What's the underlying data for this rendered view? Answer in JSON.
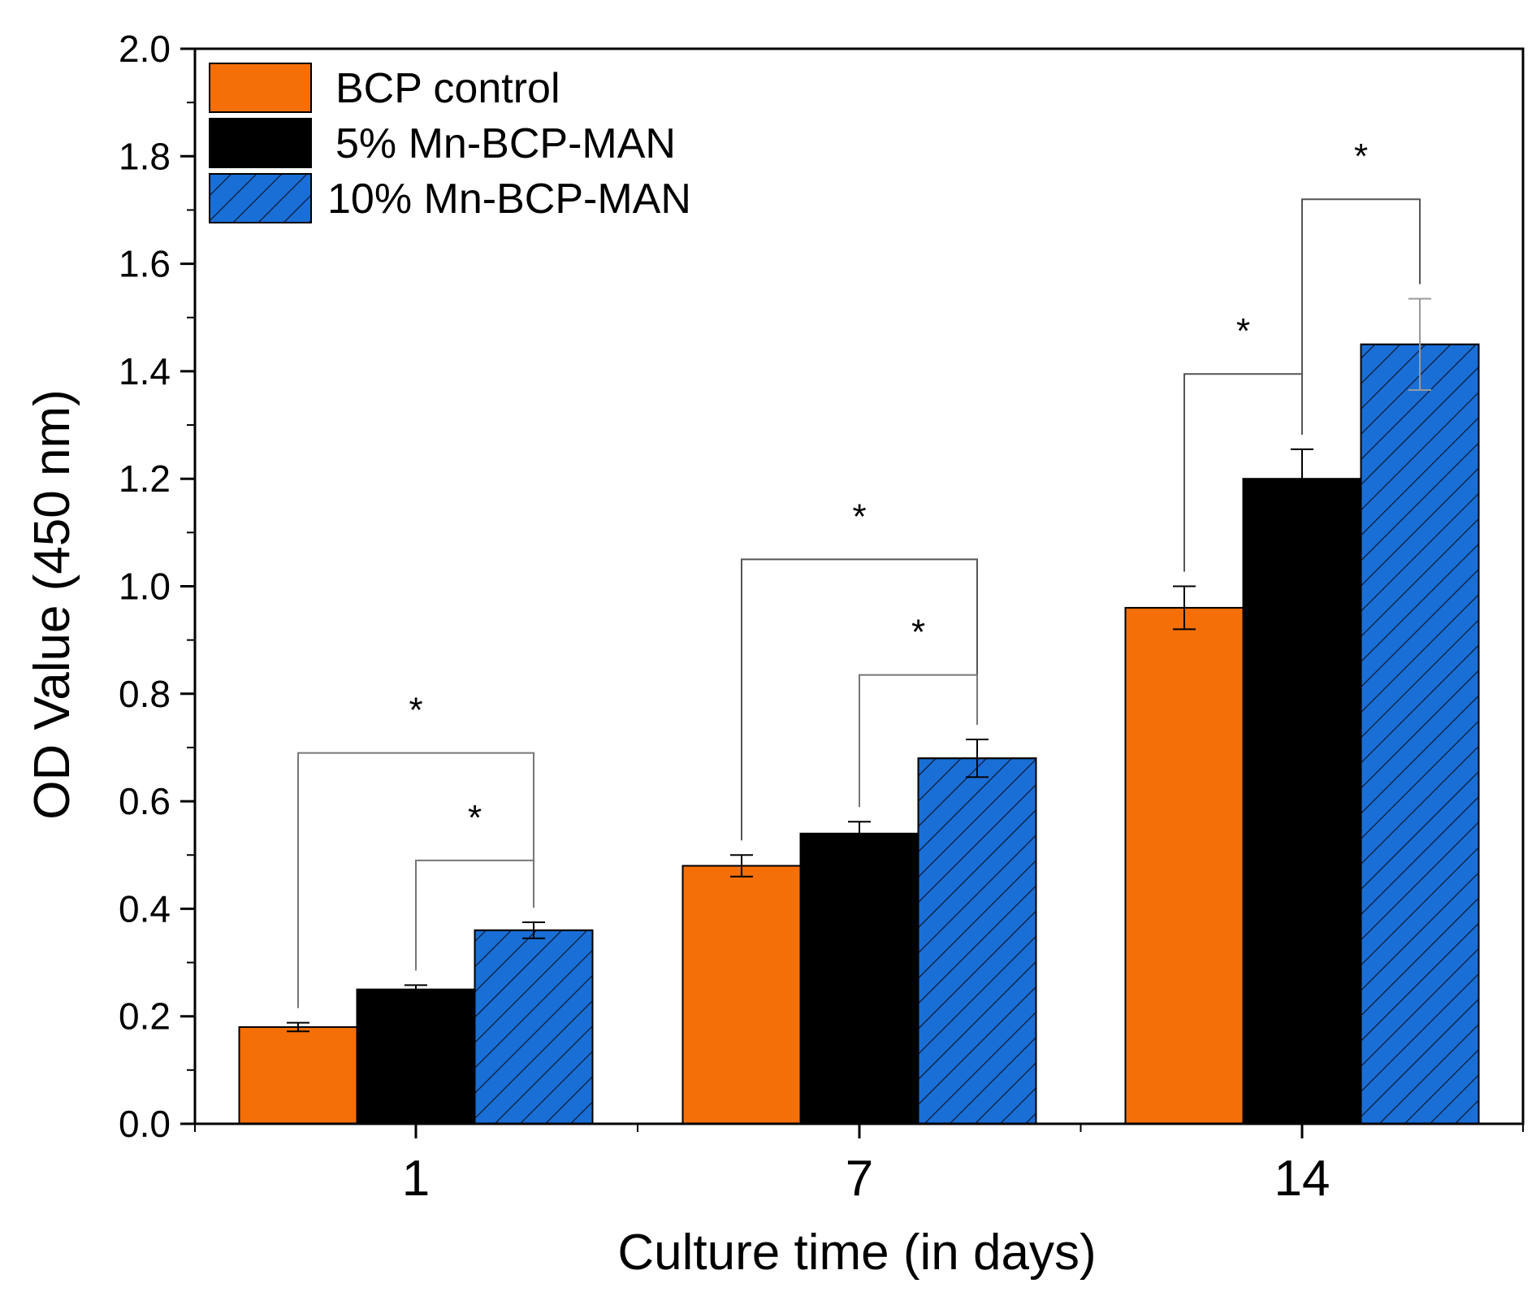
{
  "chart_data": {
    "type": "bar",
    "title": "",
    "xlabel": "Culture time (in days)",
    "ylabel": "OD Value (450 nm)",
    "ylim": [
      0,
      2.0
    ],
    "yticks": [
      "0.0",
      "0.2",
      "0.4",
      "0.6",
      "0.8",
      "1.0",
      "1.2",
      "1.4",
      "1.6",
      "1.8",
      "2.0"
    ],
    "categories": [
      "1",
      "7",
      "14"
    ],
    "legend_position": "top-left",
    "series": [
      {
        "name": "BCP control",
        "color": "#f46f08",
        "pattern": "solid",
        "values": [
          0.18,
          0.48,
          0.96
        ],
        "errors": [
          0.008,
          0.02,
          0.04
        ]
      },
      {
        "name": "5% Mn-BCP-MAN",
        "color": "#000000",
        "pattern": "solid",
        "values": [
          0.25,
          0.54,
          1.2
        ],
        "errors": [
          0.008,
          0.022,
          0.055
        ]
      },
      {
        "name": "10% Mn-BCP-MAN",
        "color": "#1a6fd6",
        "pattern": "hatched",
        "values": [
          0.36,
          0.68,
          1.45
        ],
        "errors": [
          0.015,
          0.035,
          0.085
        ]
      }
    ],
    "significance": [
      {
        "group": 0,
        "from_series": 0,
        "to_series": 2,
        "label": "*",
        "y": 0.69
      },
      {
        "group": 0,
        "from_series": 1,
        "to_series": 2,
        "label": "*",
        "y": 0.49
      },
      {
        "group": 1,
        "from_series": 0,
        "to_series": 2,
        "label": "*",
        "y": 1.05
      },
      {
        "group": 1,
        "from_series": 1,
        "to_series": 2,
        "label": "*",
        "y": 0.835
      },
      {
        "group": 2,
        "from_series": 0,
        "to_series": 1,
        "label": "*",
        "y": 1.395
      },
      {
        "group": 2,
        "from_series": 1,
        "to_series": 2,
        "label": "*",
        "y": 1.72
      }
    ]
  }
}
